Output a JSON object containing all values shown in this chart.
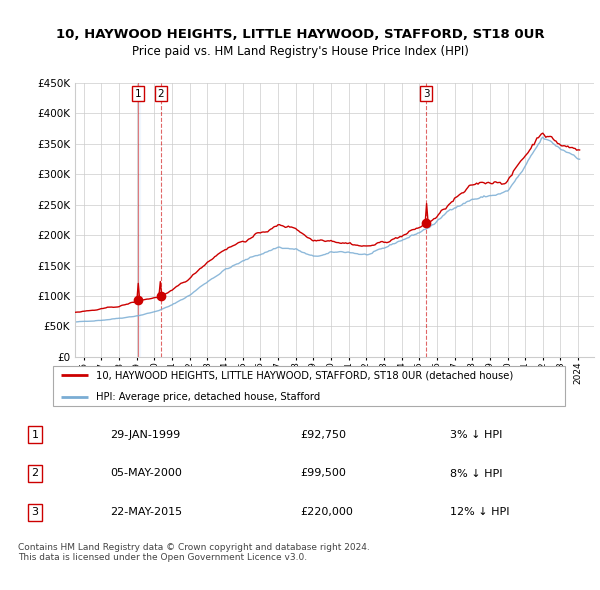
{
  "title": "10, HAYWOOD HEIGHTS, LITTLE HAYWOOD, STAFFORD, ST18 0UR",
  "subtitle": "Price paid vs. HM Land Registry's House Price Index (HPI)",
  "legend_property": "10, HAYWOOD HEIGHTS, LITTLE HAYWOOD, STAFFORD, ST18 0UR (detached house)",
  "legend_hpi": "HPI: Average price, detached house, Stafford",
  "footer": "Contains HM Land Registry data © Crown copyright and database right 2024.\nThis data is licensed under the Open Government Licence v3.0.",
  "sales": [
    {
      "num": 1,
      "date": "29-JAN-1999",
      "price": 92750,
      "pct": "3%",
      "dir": "↓",
      "year": 1999.08
    },
    {
      "num": 2,
      "date": "05-MAY-2000",
      "price": 99500,
      "pct": "8%",
      "dir": "↓",
      "year": 2000.37
    },
    {
      "num": 3,
      "date": "22-MAY-2015",
      "price": 220000,
      "pct": "12%",
      "dir": "↓",
      "year": 2015.39
    }
  ],
  "sale_color": "#cc0000",
  "hpi_color": "#7aadd4",
  "shade_color": "#ddeeff",
  "ylim": [
    0,
    450000
  ],
  "xlim_start": 1995.5,
  "xlim_end": 2024.9,
  "xtick_years": [
    1996,
    1997,
    1998,
    1999,
    2000,
    2001,
    2002,
    2003,
    2004,
    2005,
    2006,
    2007,
    2008,
    2009,
    2010,
    2011,
    2012,
    2013,
    2014,
    2015,
    2016,
    2017,
    2018,
    2019,
    2020,
    2021,
    2022,
    2023,
    2024
  ],
  "ytick_values": [
    0,
    50000,
    100000,
    150000,
    200000,
    250000,
    300000,
    350000,
    400000,
    450000
  ]
}
